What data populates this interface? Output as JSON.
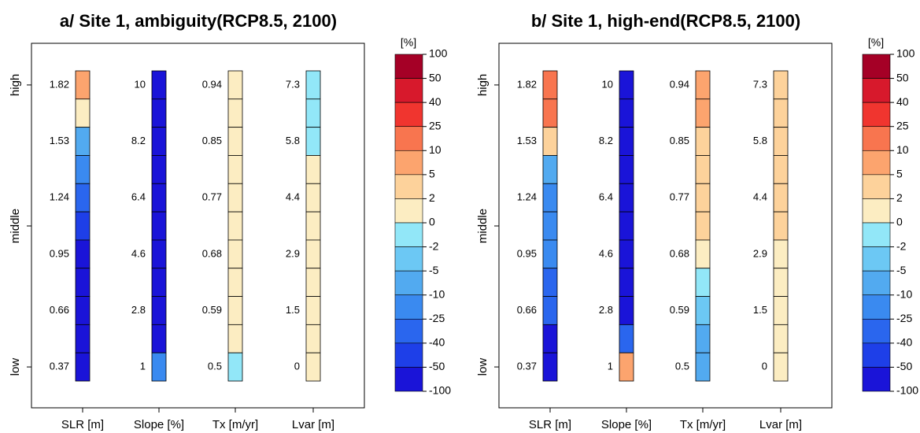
{
  "chart_data": [
    {
      "type": "heatmap",
      "title": "a/ Site 1, ambiguity(RCP8.5, 2100)",
      "y_labels": [
        "high",
        "middle",
        "low"
      ],
      "columns": [
        {
          "name": "SLR [m]",
          "levels": [
            1.82,
            null,
            1.53,
            null,
            1.24,
            null,
            0.95,
            null,
            0.66,
            null,
            0.37
          ],
          "values": [
            7.5,
            1,
            -7.5,
            -17.5,
            -32.5,
            -45,
            -75,
            -75,
            -75,
            -75,
            -75
          ]
        },
        {
          "name": "Slope [%]",
          "levels": [
            10,
            null,
            8.2,
            null,
            6.4,
            null,
            4.6,
            null,
            2.8,
            null,
            1
          ],
          "values": [
            -75,
            -75,
            -75,
            -75,
            -75,
            -75,
            -75,
            -75,
            -75,
            -75,
            -17.5
          ]
        },
        {
          "name": "Tx [m/yr]",
          "levels": [
            0.94,
            null,
            0.85,
            null,
            0.77,
            null,
            0.68,
            null,
            0.59,
            null,
            0.5
          ],
          "values": [
            1,
            1,
            1,
            1,
            1,
            1,
            1,
            1,
            1,
            1,
            -1
          ]
        },
        {
          "name": "Lvar [m]",
          "levels": [
            7.3,
            null,
            5.8,
            null,
            4.4,
            null,
            2.9,
            null,
            1.5,
            null,
            0
          ],
          "values": [
            -1,
            -1,
            -1,
            1,
            1,
            1,
            1,
            1,
            1,
            1,
            1
          ]
        }
      ],
      "legend": {
        "title": "[%]",
        "bounds": [
          100,
          50,
          40,
          25,
          10,
          5,
          2,
          0,
          -2,
          -5,
          -10,
          -25,
          -40,
          -50,
          -100
        ],
        "colors": [
          "#a50026",
          "#d7192c",
          "#f0352f",
          "#f8754f",
          "#fca46e",
          "#fdd29b",
          "#fcedc2",
          "#92e7f8",
          "#6cc8f4",
          "#52aaf0",
          "#3a8af0",
          "#2a66ee",
          "#1e3fe8",
          "#1a14d8"
        ]
      }
    },
    {
      "type": "heatmap",
      "title": "b/ Site 1, high-end(RCP8.5, 2100)",
      "y_labels": [
        "high",
        "middle",
        "low"
      ],
      "columns": [
        {
          "name": "SLR [m]",
          "levels": [
            1.82,
            null,
            1.53,
            null,
            1.24,
            null,
            0.95,
            null,
            0.66,
            null,
            0.37
          ],
          "values": [
            17.5,
            17.5,
            3.5,
            -7.5,
            -17.5,
            -17.5,
            -17.5,
            -32.5,
            -32.5,
            -75,
            -75
          ]
        },
        {
          "name": "Slope [%]",
          "levels": [
            10,
            null,
            8.2,
            null,
            6.4,
            null,
            4.6,
            null,
            2.8,
            null,
            1
          ],
          "values": [
            -75,
            -75,
            -75,
            -75,
            -75,
            -75,
            -75,
            -75,
            -75,
            -32.5,
            7.5
          ]
        },
        {
          "name": "Tx [m/yr]",
          "levels": [
            0.94,
            null,
            0.85,
            null,
            0.77,
            null,
            0.68,
            null,
            0.59,
            null,
            0.5
          ],
          "values": [
            7.5,
            7.5,
            3.5,
            3.5,
            3.5,
            3.5,
            1,
            -1,
            -3.5,
            -7.5,
            -7.5
          ]
        },
        {
          "name": "Lvar [m]",
          "levels": [
            7.3,
            null,
            5.8,
            null,
            4.4,
            null,
            2.9,
            null,
            1.5,
            null,
            0
          ],
          "values": [
            3.5,
            3.5,
            3.5,
            3.5,
            3.5,
            3.5,
            1,
            1,
            1,
            1,
            1
          ]
        }
      ],
      "legend": {
        "title": "[%]",
        "bounds": [
          100,
          50,
          40,
          25,
          10,
          5,
          2,
          0,
          -2,
          -5,
          -10,
          -25,
          -40,
          -50,
          -100
        ],
        "colors": [
          "#a50026",
          "#d7192c",
          "#f0352f",
          "#f8754f",
          "#fca46e",
          "#fdd29b",
          "#fcedc2",
          "#92e7f8",
          "#6cc8f4",
          "#52aaf0",
          "#3a8af0",
          "#2a66ee",
          "#1e3fe8",
          "#1a14d8"
        ]
      }
    }
  ]
}
